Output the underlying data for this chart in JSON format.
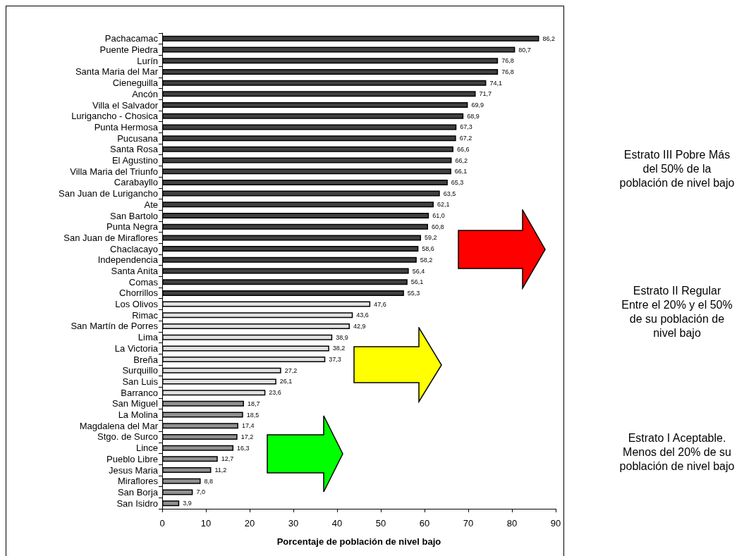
{
  "chart_data": {
    "type": "bar",
    "orientation": "horizontal",
    "xlabel": "Porcentaje de población de nivel bajo",
    "categories": [
      "Pachacamac",
      "Puente Piedra",
      "Lurín",
      "Santa Maria del Mar",
      "Cieneguilla",
      "Ancón",
      "Villa el Salvador",
      "Lurigancho - Chosica",
      "Punta Hermosa",
      "Pucusana",
      "Santa Rosa",
      "El Agustino",
      "Villa Maria del Triunfo",
      "Carabayllo",
      "San Juan de Lurigancho",
      "Ate",
      "San Bartolo",
      "Punta Negra",
      "San Juan de Miraflores",
      "Chaclacayo",
      "Independencia",
      "Santa Anita",
      "Comas",
      "Chorrillos",
      "Los Olivos",
      "Rimac",
      "San Martín de Porres",
      "Lima",
      "La Victoria",
      "Breña",
      "Surquillo",
      "San Luis",
      "Barranco",
      "San Miguel",
      "La Molina",
      "Magdalena del Mar",
      "Stgo. de Surco",
      "Lince",
      "Pueblo Libre",
      "Jesus Maria",
      "Miraflores",
      "San Borja",
      "San Isidro"
    ],
    "values": [
      86.2,
      80.7,
      76.8,
      76.8,
      74.1,
      71.7,
      69.9,
      68.9,
      67.3,
      67.2,
      66.6,
      66.2,
      66.1,
      65.3,
      63.5,
      62.1,
      61.0,
      60.8,
      59.2,
      58.6,
      58.2,
      56.4,
      56.1,
      55.3,
      47.6,
      43.6,
      42.9,
      38.9,
      38.2,
      37.3,
      27.2,
      26.1,
      23.6,
      18.7,
      18.5,
      17.4,
      17.2,
      16.3,
      12.7,
      11.2,
      8.8,
      7.0,
      3.9
    ],
    "colors": [
      "#404040",
      "#404040",
      "#404040",
      "#404040",
      "#404040",
      "#404040",
      "#404040",
      "#404040",
      "#404040",
      "#404040",
      "#404040",
      "#404040",
      "#404040",
      "#404040",
      "#404040",
      "#404040",
      "#404040",
      "#404040",
      "#404040",
      "#404040",
      "#404040",
      "#404040",
      "#404040",
      "#404040",
      "#e0e0e0",
      "#e0e0e0",
      "#e0e0e0",
      "#e0e0e0",
      "#e0e0e0",
      "#e0e0e0",
      "#e0e0e0",
      "#e0e0e0",
      "#e0e0e0",
      "#909090",
      "#909090",
      "#909090",
      "#909090",
      "#909090",
      "#909090",
      "#909090",
      "#909090",
      "#909090",
      "#909090"
    ],
    "value_labels": [
      "86,2",
      "80,7",
      "76,8",
      "76,8",
      "74,1",
      "71,7",
      "69,9",
      "68,9",
      "67,3",
      "67,2",
      "66,6",
      "66,2",
      "66,1",
      "65,3",
      "63,5",
      "62,1",
      "61,0",
      "60,8",
      "59,2",
      "58,6",
      "58,2",
      "56,4",
      "56,1",
      "55,3",
      "47,6",
      "43,6",
      "42,9",
      "38,9",
      "38,2",
      "37,3",
      "27,2",
      "26,1",
      "23,6",
      "18,7",
      "18,5",
      "17,4",
      "17,2",
      "16,3",
      "12,7",
      "11,2",
      "8,8",
      "7,0",
      "3,9"
    ],
    "xlim": [
      0,
      90
    ],
    "xticks": [
      0,
      10,
      20,
      30,
      40,
      50,
      60,
      70,
      80,
      90
    ],
    "grid": false,
    "annotations": [
      "Estrato III Pobre Más del 50% de la población de nivel bajo",
      "Estrato II Regular Entre el 20% y el 50% de su población de nivel bajo",
      "Estrato I Aceptable. Menos del 20% de su población de nivel bajo"
    ]
  }
}
